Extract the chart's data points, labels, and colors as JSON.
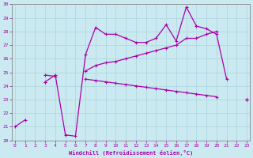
{
  "xlabel": "Windchill (Refroidissement éolien,°C)",
  "xlim": [
    0,
    23
  ],
  "ylim": [
    20,
    30
  ],
  "xticks": [
    0,
    1,
    2,
    3,
    4,
    5,
    6,
    7,
    8,
    9,
    10,
    11,
    12,
    13,
    14,
    15,
    16,
    17,
    18,
    19,
    20,
    21,
    22,
    23
  ],
  "yticks": [
    20,
    21,
    22,
    23,
    24,
    25,
    26,
    27,
    28,
    29,
    30
  ],
  "bg_color": "#cbe9f0",
  "line_color": "#aa00aa",
  "grid_color": "#b0d8e0",
  "line1_y": [
    21.0,
    21.5,
    null,
    24.3,
    24.8,
    20.4,
    20.3,
    26.3,
    28.3,
    27.8,
    27.8,
    27.5,
    27.2,
    27.2,
    27.5,
    28.5,
    27.3,
    29.8,
    28.4,
    28.2,
    27.8,
    24.5,
    null,
    23.0
  ],
  "line2_y": [
    null,
    null,
    null,
    24.8,
    24.7,
    null,
    null,
    25.1,
    25.5,
    25.7,
    25.8,
    26.0,
    26.2,
    26.4,
    26.6,
    26.8,
    27.0,
    27.5,
    27.5,
    27.8,
    28.0,
    null,
    null,
    23.0
  ],
  "line3_y": [
    null,
    null,
    null,
    24.3,
    null,
    null,
    null,
    24.5,
    24.4,
    24.3,
    24.2,
    24.1,
    24.0,
    23.9,
    23.8,
    23.7,
    23.6,
    23.5,
    23.4,
    23.3,
    23.2,
    null,
    null,
    23.0
  ],
  "marker": "+",
  "markersize": 3,
  "linewidth": 0.9
}
